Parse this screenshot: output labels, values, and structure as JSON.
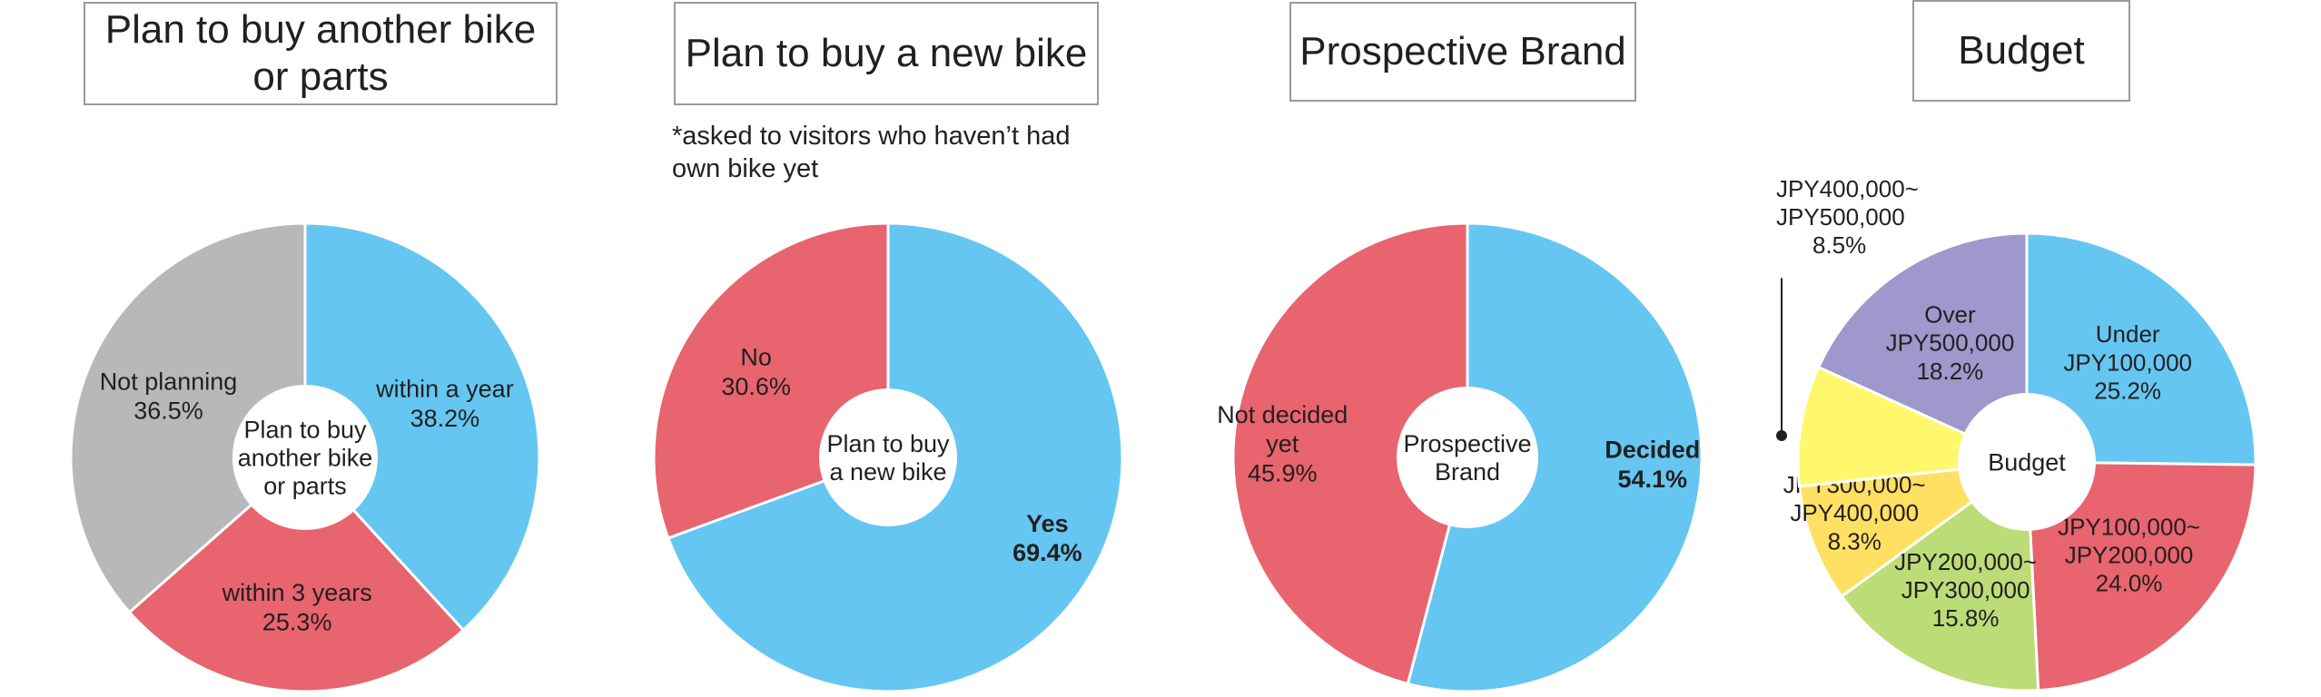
{
  "colors": {
    "blue": "#65c6f1",
    "red": "#e8646e",
    "gray": "#b8b8b8",
    "green": "#bcdc78",
    "orange": "#ffe063",
    "yellow": "#fff86c",
    "purple": "#9e98cc",
    "stroke": "#ffffff"
  },
  "chart_data": [
    {
      "type": "pie",
      "title": "Plan to buy another bike\nor parts",
      "center_label": "Plan to buy\nanother bike\nor parts",
      "slices": [
        {
          "label": "within a year",
          "value": 38.2,
          "display": "38.2%",
          "color": "blue",
          "bold": false
        },
        {
          "label": "within 3 years",
          "value": 25.3,
          "display": "25.3%",
          "color": "red",
          "bold": false
        },
        {
          "label": "Not planning",
          "value": 36.5,
          "display": "36.5%",
          "color": "gray",
          "bold": false
        }
      ]
    },
    {
      "type": "pie",
      "title": "Plan to buy a new bike",
      "note": "*asked to visitors who haven’t had\n  own bike yet",
      "center_label": "Plan to buy\na new bike",
      "slices": [
        {
          "label": "Yes",
          "value": 69.4,
          "display": "69.4%",
          "color": "blue",
          "bold": true
        },
        {
          "label": "No",
          "value": 30.6,
          "display": "30.6%",
          "color": "red",
          "bold": false
        }
      ]
    },
    {
      "type": "pie",
      "title": "Prospective Brand",
      "center_label": "Prospective\nBrand",
      "slices": [
        {
          "label": "Decided",
          "value": 54.1,
          "display": "54.1%",
          "color": "blue",
          "bold": true
        },
        {
          "label": "Not decided\nyet",
          "value": 45.9,
          "display": "45.9%",
          "color": "red",
          "bold": false
        }
      ]
    },
    {
      "type": "pie",
      "title": "Budget",
      "center_label": "Budget",
      "slices": [
        {
          "label": "Under\nJPY100,000",
          "value": 25.2,
          "display": "25.2%",
          "color": "blue",
          "bold": false
        },
        {
          "label": "JPY100,000~\nJPY200,000",
          "value": 24.0,
          "display": "24.0%",
          "color": "red",
          "bold": false
        },
        {
          "label": "JPY200,000~\nJPY300,000",
          "value": 15.8,
          "display": "15.8%",
          "color": "green",
          "bold": false
        },
        {
          "label": "JPY300,000~\nJPY400,000",
          "value": 8.3,
          "display": "8.3%",
          "color": "orange",
          "bold": false
        },
        {
          "label": "JPY400,000~\nJPY500,000",
          "value": 8.5,
          "display": "8.5%",
          "color": "yellow",
          "bold": false,
          "callout": true
        },
        {
          "label": "Over\nJPY500,000",
          "value": 18.2,
          "display": "18.2%",
          "color": "purple",
          "bold": false
        }
      ]
    }
  ]
}
